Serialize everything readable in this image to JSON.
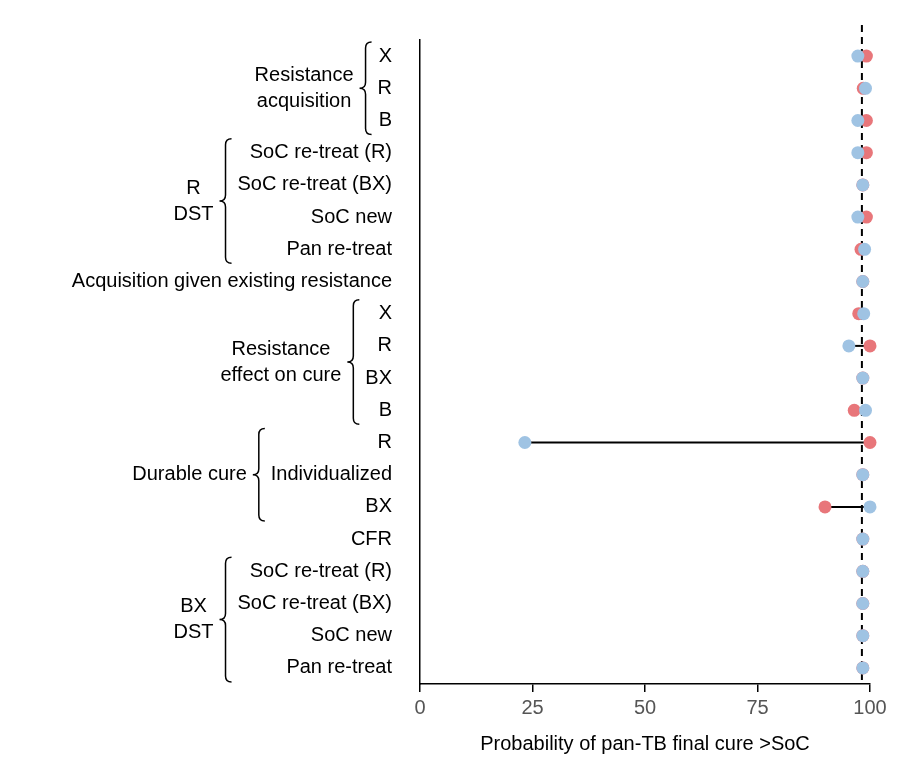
{
  "chart_data": {
    "type": "dot",
    "orientation": "horizontal",
    "groups": [
      {
        "label": [
          "Resistance",
          "acquisition"
        ],
        "categories": [
          "X",
          "R",
          "B"
        ]
      },
      {
        "label": [
          "R",
          "DST"
        ],
        "categories": [
          "SoC re-treat (R)",
          "SoC re-treat (BX)",
          "SoC new",
          "Pan re-treat"
        ]
      },
      {
        "label": null,
        "categories": [
          "Acquisition given existing resistance"
        ]
      },
      {
        "label": [
          "Resistance",
          "effect on cure"
        ],
        "categories": [
          "X",
          "R",
          "BX",
          "B"
        ]
      },
      {
        "label": [
          "Durable cure"
        ],
        "categories": [
          "R",
          "Individualized",
          "BX"
        ]
      },
      {
        "label": null,
        "categories": [
          "CFR"
        ]
      },
      {
        "label": [
          "BX",
          "DST"
        ],
        "categories": [
          "SoC re-treat (R)",
          "SoC re-treat (BX)",
          "SoC new",
          "Pan re-treat"
        ]
      }
    ],
    "x_label": "Probability of pan-TB final cure >SoC",
    "series": [
      {
        "color": "#e8767a",
        "values": [
          99.2,
          98.5,
          99.2,
          99.2,
          98.4,
          99.2,
          98.0,
          98.4,
          97.5,
          100,
          98.4,
          96.5,
          100,
          98.4,
          90,
          98.4,
          98.4,
          98.4,
          98.4,
          98.4
        ]
      },
      {
        "color": "#9fc3e3",
        "values": [
          97.3,
          99.0,
          97.3,
          97.3,
          98.4,
          97.3,
          98.8,
          98.4,
          98.6,
          95.3,
          98.4,
          99.0,
          23.3,
          98.4,
          100,
          98.4,
          98.4,
          98.4,
          98.4,
          98.4
        ]
      }
    ],
    "reference_line": 98.2,
    "xlim": [
      0,
      100
    ],
    "xticks": [
      0,
      25,
      50,
      75,
      100
    ],
    "grid": false,
    "marker": "circle"
  }
}
